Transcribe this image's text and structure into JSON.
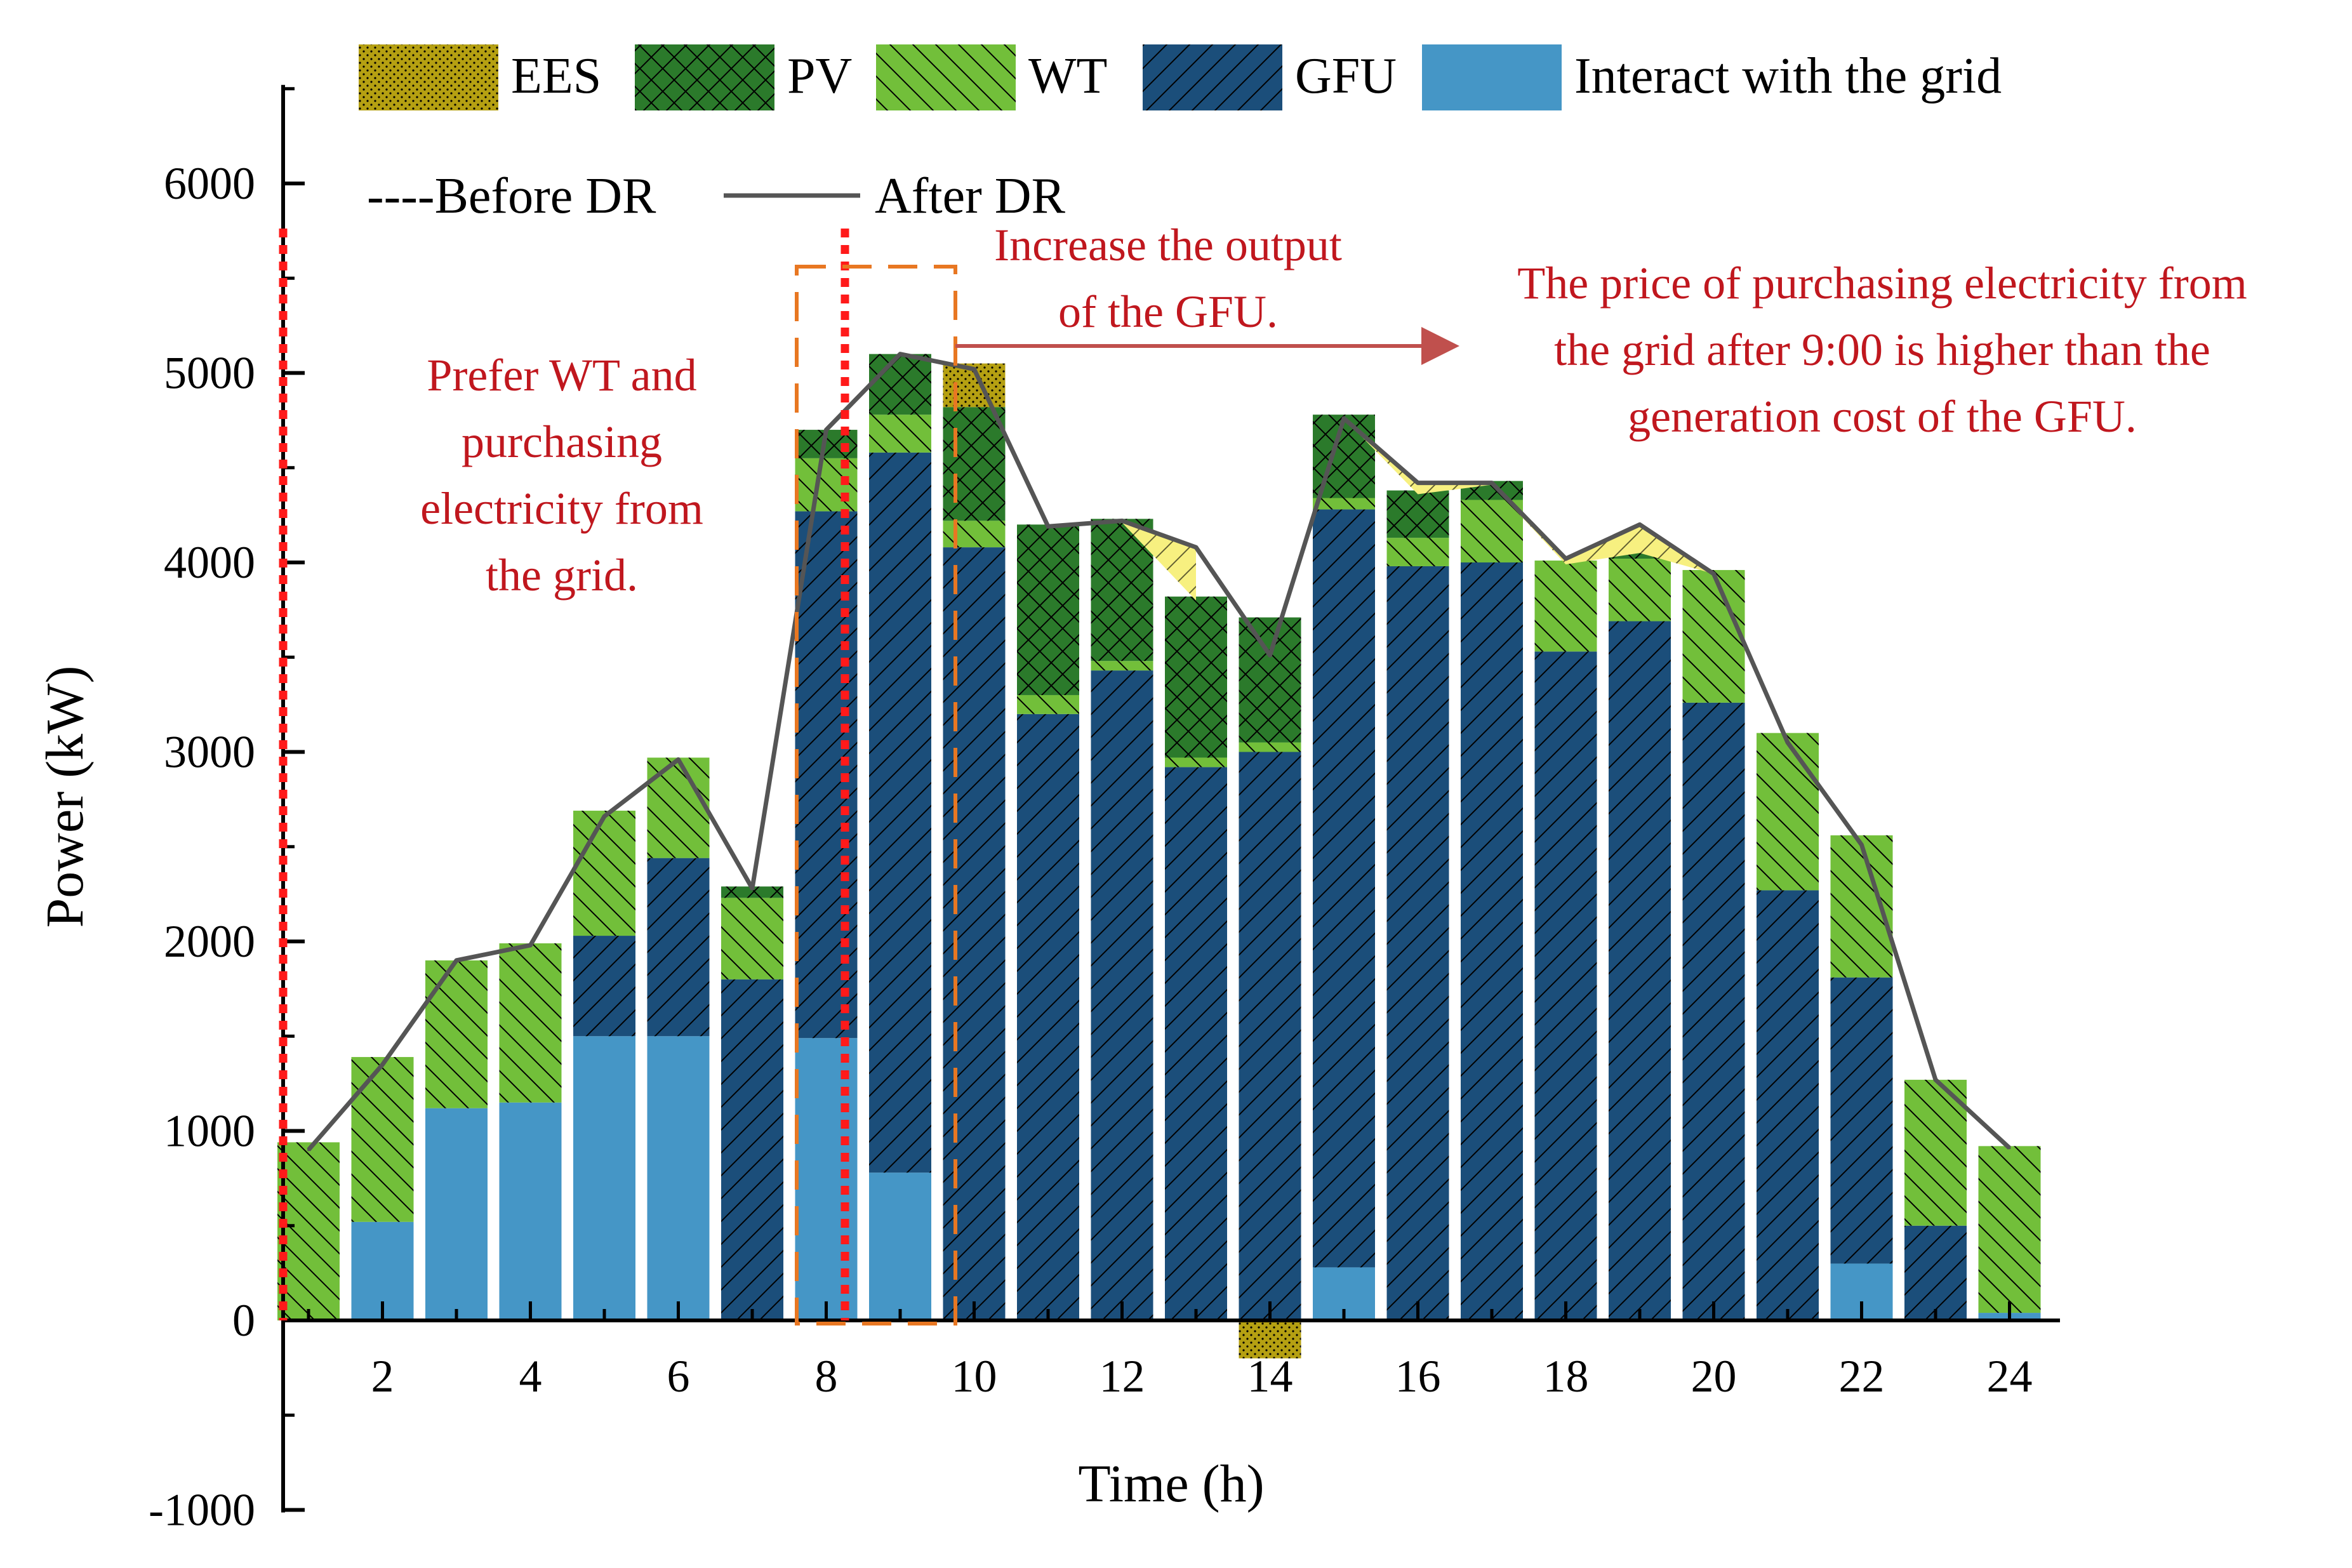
{
  "chart_data": {
    "type": "bar",
    "stacked": true,
    "xlabel": "Time (h)",
    "ylabel": "Power (kW)",
    "ylim": [
      -1000,
      6500
    ],
    "yticks": [
      -1000,
      0,
      1000,
      2000,
      3000,
      4000,
      5000,
      6000
    ],
    "xticks": [
      2,
      4,
      6,
      8,
      10,
      12,
      14,
      16,
      18,
      20,
      22,
      24
    ],
    "hours": [
      1,
      2,
      3,
      4,
      5,
      6,
      7,
      8,
      9,
      10,
      11,
      12,
      13,
      14,
      15,
      16,
      17,
      18,
      19,
      20,
      21,
      22,
      23,
      24
    ],
    "series": [
      {
        "name": "Interact with the grid",
        "key": "grid",
        "color": "#4596c6",
        "values": [
          0,
          520,
          1120,
          1150,
          1500,
          1500,
          0,
          1490,
          780,
          0,
          0,
          0,
          0,
          0,
          280,
          0,
          0,
          0,
          0,
          0,
          0,
          300,
          0,
          40
        ]
      },
      {
        "name": "GFU",
        "key": "gfu",
        "color": "#1b4e7a",
        "values": [
          0,
          0,
          0,
          0,
          530,
          940,
          1800,
          2780,
          3800,
          4080,
          3200,
          3430,
          2920,
          3000,
          4000,
          3980,
          4000,
          3530,
          3690,
          3260,
          2270,
          1510,
          500,
          0
        ]
      },
      {
        "name": "WT",
        "key": "wt",
        "color": "#72bf3a",
        "values": [
          940,
          870,
          780,
          840,
          660,
          530,
          430,
          280,
          200,
          140,
          100,
          50,
          50,
          50,
          60,
          150,
          330,
          480,
          330,
          700,
          830,
          750,
          770,
          880
        ]
      },
      {
        "name": "PV",
        "key": "pv",
        "color": "#2b7a2b",
        "values": [
          0,
          0,
          0,
          0,
          0,
          0,
          60,
          150,
          320,
          600,
          900,
          750,
          850,
          660,
          440,
          250,
          100,
          0,
          50,
          0,
          0,
          0,
          0,
          0
        ]
      },
      {
        "name": "EES",
        "key": "ees",
        "color": "#b5a012",
        "values": [
          0,
          0,
          0,
          0,
          0,
          0,
          0,
          0,
          0,
          230,
          0,
          0,
          0,
          -200,
          0,
          0,
          0,
          0,
          0,
          0,
          0,
          0,
          0,
          0
        ]
      }
    ],
    "after_dr": [
      900,
      1350,
      1900,
      1980,
      2660,
      2960,
      2280,
      4700,
      5100,
      5020,
      4190,
      4220,
      4080,
      3510,
      4760,
      4420,
      4420,
      4020,
      4200,
      3940,
      3050,
      2510,
      1270,
      910
    ],
    "legend": {
      "items": [
        {
          "label": "EES",
          "key": "ees"
        },
        {
          "label": "PV",
          "key": "pv"
        },
        {
          "label": "WT",
          "key": "wt"
        },
        {
          "label": "GFU",
          "key": "gfu"
        },
        {
          "label": "Interact with the grid",
          "key": "grid"
        }
      ],
      "before_label": "----Before DR",
      "after_label": "After DR"
    },
    "annotations": {
      "left": [
        "Prefer WT and",
        "purchasing",
        "electricity from",
        "the grid."
      ],
      "mid": [
        "Increase the output",
        "of the GFU."
      ],
      "right": [
        "The price of purchasing electricity from",
        "the grid after 9:00 is higher than the",
        "generation cost of the GFU."
      ]
    },
    "colors": {
      "annotation_red": "#c0171e",
      "marker_red": "#ff1a1a",
      "box_orange": "#e87722",
      "arrow": "#c0504d",
      "line": "#555555",
      "shade": "#f7f080"
    }
  }
}
